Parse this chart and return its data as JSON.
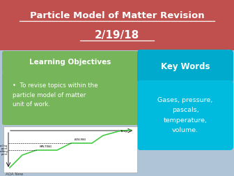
{
  "bg_color": "#b0c4d8",
  "title_bg": "#c0504d",
  "title_line1": "Particle Model of Matter Revision",
  "title_line2": "2/19/18",
  "title_color": "#ffffff",
  "lo_header_bg": "#77b55a",
  "lo_header_text": "Learning Objectives",
  "lo_body_bg": "#77b55a",
  "lo_body_text": "To revise topics within the\nparticle model of matter\nunit of work.",
  "kw_header_bg": "#00aacc",
  "kw_header_text": "Key Words",
  "kw_body_bg": "#00bbdd",
  "kw_body_text": "Gases, pressure,\npascals,\ntemperature,\nvolume.",
  "footer_text": "AQA New",
  "footer_color": "#444444"
}
